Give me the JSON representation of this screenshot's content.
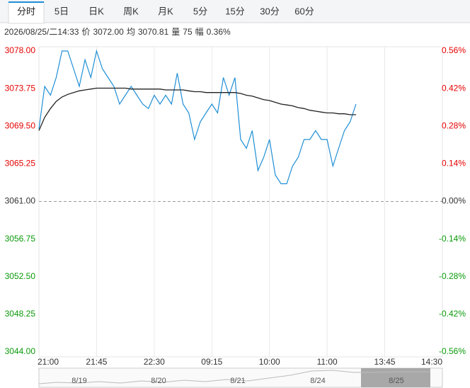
{
  "tabs": [
    "分时",
    "5日",
    "日K",
    "周K",
    "月K",
    "5分",
    "15分",
    "30分",
    "60分"
  ],
  "info": [
    "2026/08/25/二14:33",
    "价",
    "3072.00",
    "均",
    "3070.81",
    "量",
    "75",
    "幅",
    "0.36%"
  ],
  "chart_data": {
    "type": "line",
    "series": [
      {
        "name": "价",
        "color": "#1f8fd6",
        "values": [
          3069.2,
          3074,
          3073,
          3075,
          3078,
          3078,
          3076,
          3074,
          3077,
          3075,
          3078,
          3076,
          3075,
          3074,
          3072,
          3073,
          3074,
          3073,
          3072,
          3071.5,
          3073,
          3072,
          3073,
          3072,
          3075.5,
          3072,
          3071,
          3068,
          3070,
          3071,
          3072,
          3071,
          3075,
          3073,
          3075,
          3068,
          3067,
          3069,
          3064.5,
          3066,
          3068,
          3064,
          3063,
          3063,
          3065,
          3066,
          3068,
          3068,
          3069,
          3068,
          3068,
          3065,
          3067,
          3069,
          3070,
          3072
        ]
      },
      {
        "name": "均",
        "color": "#222222",
        "values": [
          3069,
          3070.5,
          3071.5,
          3072.3,
          3072.8,
          3073.1,
          3073.3,
          3073.5,
          3073.6,
          3073.7,
          3073.8,
          3073.8,
          3073.8,
          3073.8,
          3073.8,
          3073.8,
          3073.7,
          3073.7,
          3073.7,
          3073.7,
          3073.7,
          3073.7,
          3073.6,
          3073.6,
          3073.6,
          3073.6,
          3073.5,
          3073.4,
          3073.4,
          3073.3,
          3073.3,
          3073.3,
          3073.3,
          3073.3,
          3073.3,
          3073.2,
          3073.0,
          3072.9,
          3072.7,
          3072.5,
          3072.4,
          3072.2,
          3072.0,
          3071.9,
          3071.8,
          3071.6,
          3071.5,
          3071.3,
          3071.2,
          3071.1,
          3071.0,
          3071.0,
          3070.9,
          3070.9,
          3070.8,
          3070.8
        ]
      }
    ],
    "ylim": [
      3044,
      3078
    ],
    "yticks": [
      {
        "value": 3078,
        "label": "3078.00"
      },
      3073.75,
      {
        "value": 3069.5,
        "label": "3069.50"
      },
      3065.25,
      {
        "value": 3061,
        "label": "3061.00"
      },
      3056.75,
      {
        "value": 3052.5,
        "label": "3052.50"
      },
      3048.25,
      {
        "value": 3044,
        "label": "3044.00"
      }
    ],
    "y2lim": [
      -0.56,
      0.56
    ],
    "y2ticks": [
      {
        "value": 0.56,
        "label": "0.56%"
      },
      {
        "value": 0.42,
        "label": "0.42%"
      },
      {
        "value": 0.28,
        "label": "0.28%"
      },
      {
        "value": 0.14,
        "label": "0.14%"
      },
      {
        "value": 0,
        "label": "0.00%"
      },
      {
        "value": -0.14,
        "label": "-0.14%"
      },
      {
        "value": -0.28,
        "label": "-0.28%"
      },
      {
        "value": -0.42,
        "label": "-0.42%"
      },
      {
        "value": -0.56,
        "label": "-0.56%"
      }
    ],
    "xlim": [
      0,
      70
    ],
    "xticks": [
      {
        "value": 0,
        "label": "21:00"
      },
      {
        "value": 10,
        "label": "21:45"
      },
      {
        "value": 20,
        "label": "22:30"
      },
      {
        "value": 30,
        "label": "09:15"
      },
      {
        "value": 40,
        "label": "10:00"
      },
      {
        "value": 50,
        "label": "11:00"
      },
      {
        "value": 60,
        "label": "13:45"
      },
      {
        "value": 70,
        "label": "14:30"
      }
    ],
    "grid": true
  },
  "navigator": [
    "8/19",
    "8/20",
    "8/21",
    "8/24",
    "8/25"
  ]
}
